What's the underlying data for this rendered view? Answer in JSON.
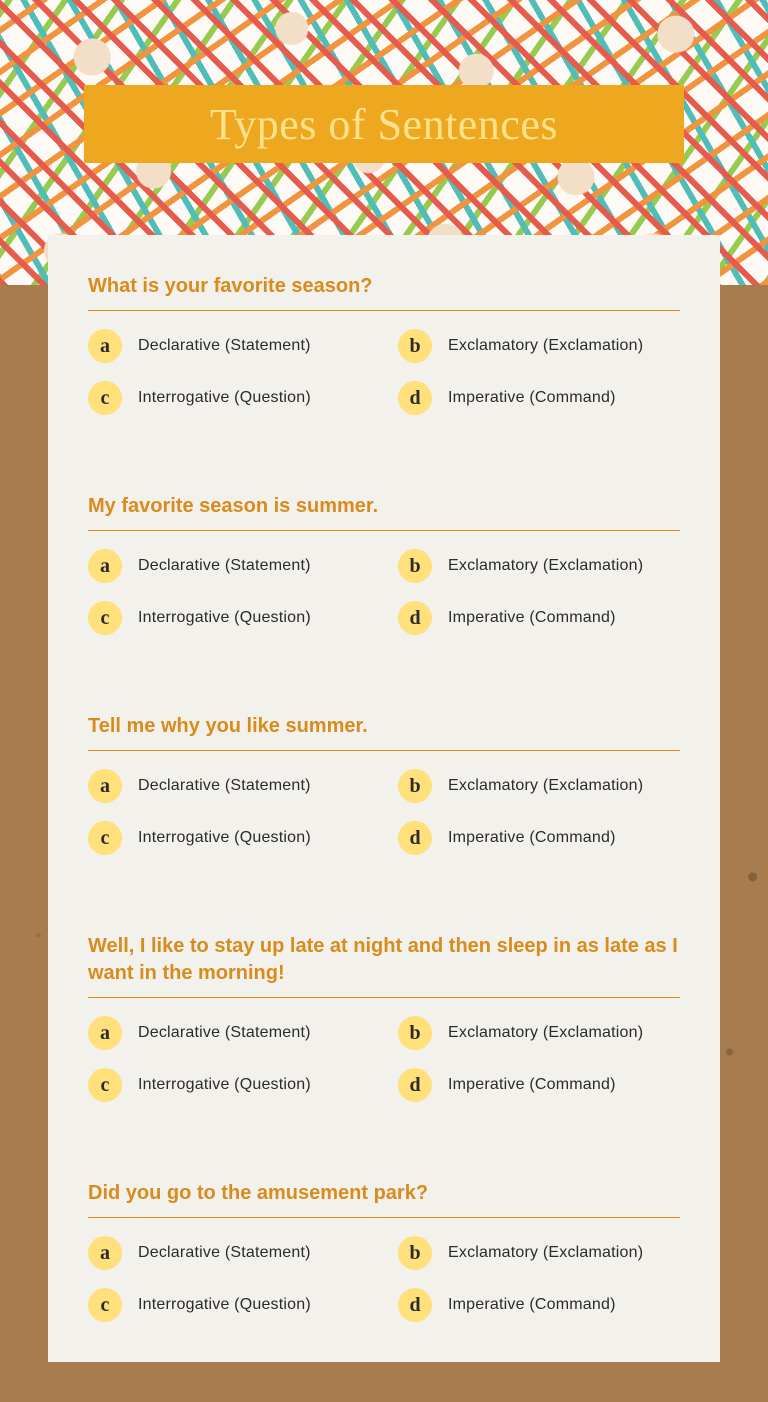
{
  "title": "Types of Sentences",
  "colors": {
    "title_bg": "#eea820",
    "title_text": "#ffe28a",
    "prompt": "#d98b1c",
    "card_bg": "#f3f1ec",
    "cork_bg": "#a97c50",
    "badge_bg": "#ffe07a",
    "choice_text": "#2b2b2b"
  },
  "questions": [
    {
      "prompt": "What is your favorite season?",
      "choices": [
        {
          "letter": "a",
          "text": "Declarative (Statement)"
        },
        {
          "letter": "b",
          "text": "Exclamatory (Exclamation)"
        },
        {
          "letter": "c",
          "text": "Interrogative (Question)"
        },
        {
          "letter": "d",
          "text": "Imperative (Command)"
        }
      ]
    },
    {
      "prompt": "My favorite season is summer.",
      "choices": [
        {
          "letter": "a",
          "text": "Declarative (Statement)"
        },
        {
          "letter": "b",
          "text": "Exclamatory (Exclamation)"
        },
        {
          "letter": "c",
          "text": "Interrogative (Question)"
        },
        {
          "letter": "d",
          "text": "Imperative (Command)"
        }
      ]
    },
    {
      "prompt": "Tell me why you like summer.",
      "choices": [
        {
          "letter": "a",
          "text": "Declarative (Statement)"
        },
        {
          "letter": "b",
          "text": "Exclamatory (Exclamation)"
        },
        {
          "letter": "c",
          "text": "Interrogative (Question)"
        },
        {
          "letter": "d",
          "text": "Imperative (Command)"
        }
      ]
    },
    {
      "prompt": "Well, I like to stay up late at night and then sleep in as late as I want in the morning!",
      "choices": [
        {
          "letter": "a",
          "text": "Declarative (Statement)"
        },
        {
          "letter": "b",
          "text": "Exclamatory (Exclamation)"
        },
        {
          "letter": "c",
          "text": "Interrogative (Question)"
        },
        {
          "letter": "d",
          "text": "Imperative (Command)"
        }
      ]
    },
    {
      "prompt": "Did you go to the amusement park?",
      "choices": [
        {
          "letter": "a",
          "text": "Declarative (Statement)"
        },
        {
          "letter": "b",
          "text": "Exclamatory (Exclamation)"
        },
        {
          "letter": "c",
          "text": "Interrogative (Question)"
        },
        {
          "letter": "d",
          "text": "Imperative (Command)"
        }
      ]
    }
  ]
}
